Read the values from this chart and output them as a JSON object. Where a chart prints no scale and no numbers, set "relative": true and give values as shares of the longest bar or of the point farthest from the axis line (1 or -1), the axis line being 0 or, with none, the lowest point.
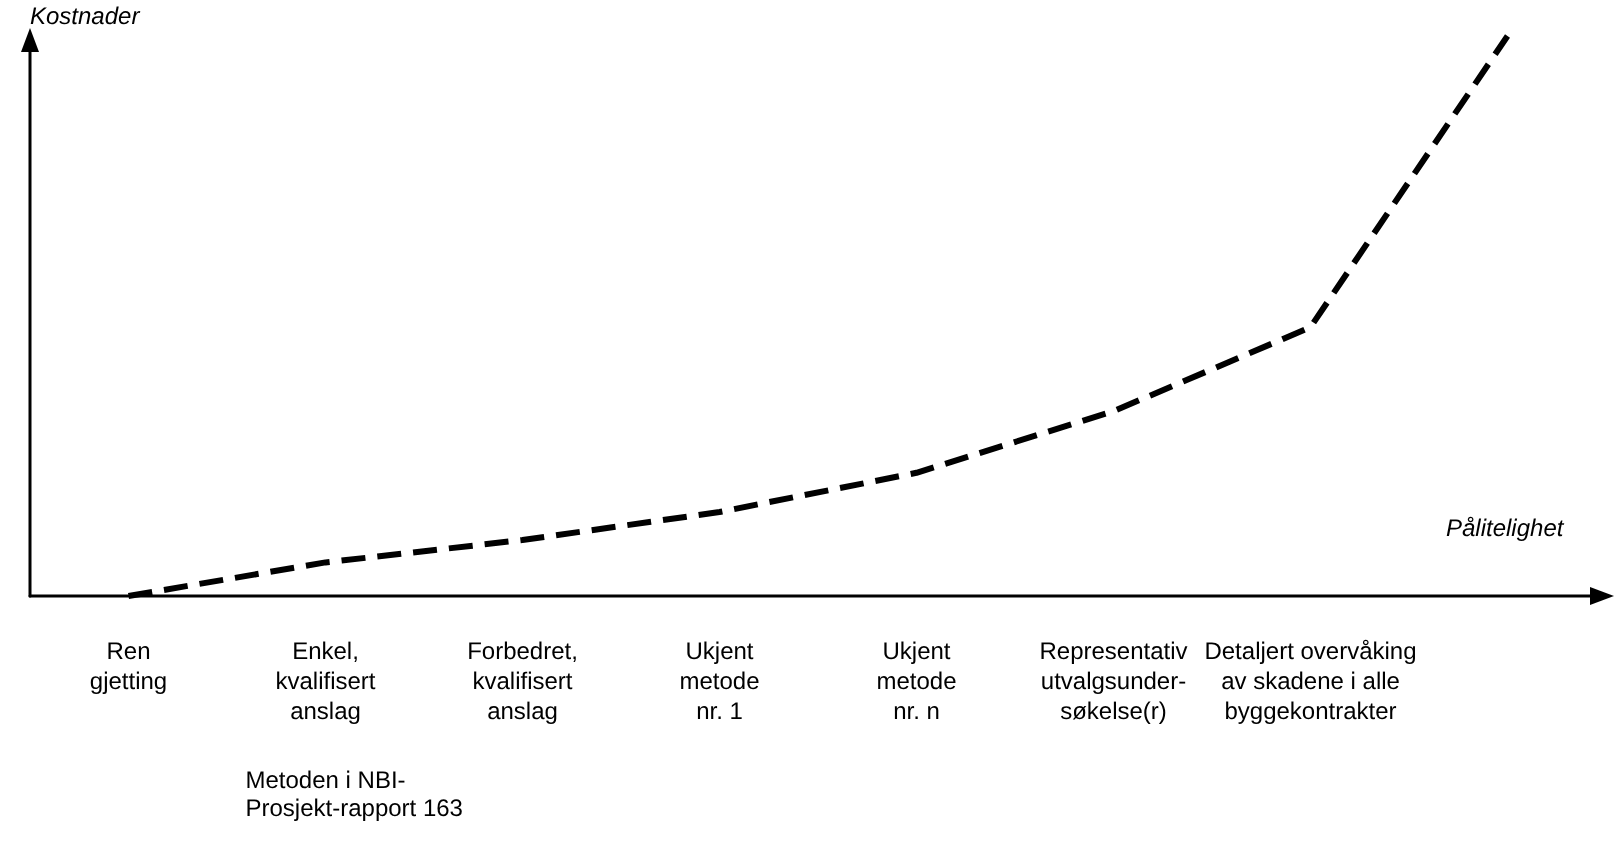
{
  "chart_data": {
    "type": "line",
    "relative": true,
    "xlabel": "Pålitelighet",
    "ylabel": "Kostnader",
    "categories": [
      "Ren\ngjetting",
      "Enkel,\nkvalifisert\nanslag",
      "Forbedret,\nkvalifisert\nanslag",
      "Ukjent\nmetode\nnr. 1",
      "Ukjent\nmetode\nnr. n",
      "Representativ\nutvalgsunder-\nsøkelse(r)",
      "Detaljert overvåking\nav skadene i alle\nbyggekontrakter",
      null
    ],
    "series": [
      {
        "color": "#000000",
        "values": [
          0,
          0.06,
          0.1,
          0.15,
          0.22,
          0.33,
          0.48,
          1
        ]
      }
    ],
    "annotations": [
      "Metoden i NBI-\nProsjekt-rapport 163"
    ],
    "line_style": "dashed",
    "marker": "none",
    "grid": false
  }
}
